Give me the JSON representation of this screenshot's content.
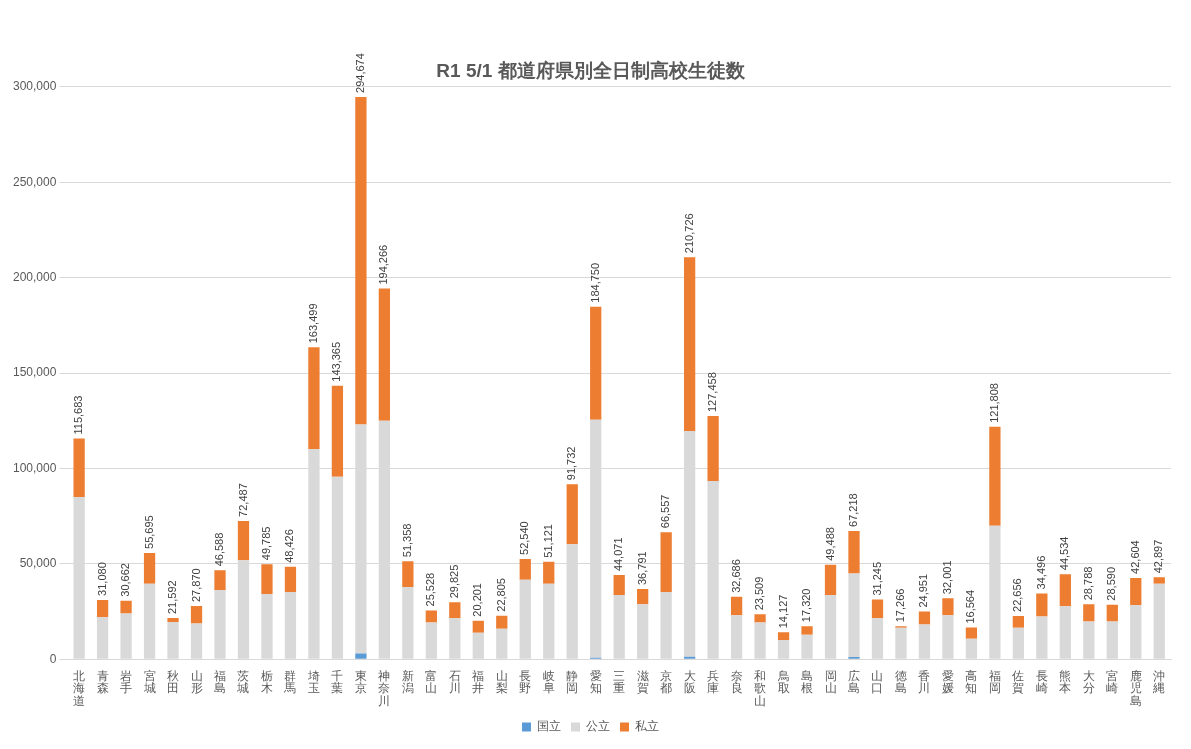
{
  "chart_data": {
    "type": "bar",
    "title": "R1 5/1 都道府県別全日制高校生徒数",
    "stacked": true,
    "grid": true,
    "legend": "bottom",
    "categories": [
      "北海道",
      "青森",
      "岩手",
      "宮城",
      "秋田",
      "山形",
      "福島",
      "茨城",
      "栃木",
      "群馬",
      "埼玉",
      "千葉",
      "東京",
      "神奈川",
      "新潟",
      "富山",
      "石川",
      "福井",
      "山梨",
      "長野",
      "岐阜",
      "静岡",
      "愛知",
      "三重",
      "滋賀",
      "京都",
      "大阪",
      "兵庫",
      "奈良",
      "和歌山",
      "鳥取",
      "島根",
      "岡山",
      "広島",
      "山口",
      "徳島",
      "香川",
      "愛媛",
      "高知",
      "福岡",
      "佐賀",
      "長崎",
      "熊本",
      "大分",
      "宮崎",
      "鹿児島",
      "沖縄"
    ],
    "series": [
      {
        "name": "国立",
        "color": "#5b9bd5",
        "values": [
          0,
          0,
          0,
          0,
          0,
          0,
          0,
          0,
          0,
          0,
          0,
          0,
          3000,
          0,
          0,
          0,
          0,
          0,
          0,
          0,
          0,
          0,
          700,
          0,
          0,
          0,
          1300,
          0,
          0,
          0,
          0,
          0,
          0,
          1100,
          0,
          0,
          0,
          0,
          0,
          0,
          0,
          0,
          0,
          0,
          0,
          0,
          0
        ]
      },
      {
        "name": "公立",
        "color": "#d9d9d9",
        "values": [
          85000,
          22000,
          24000,
          39500,
          19500,
          18700,
          36300,
          51800,
          34200,
          35200,
          110000,
          95600,
          120000,
          125000,
          37900,
          19200,
          21400,
          13900,
          16000,
          41600,
          39500,
          60300,
          124800,
          33600,
          28800,
          35200,
          118300,
          93400,
          23000,
          19200,
          10100,
          12800,
          33600,
          43800,
          21400,
          16500,
          18200,
          23000,
          10700,
          70000,
          16500,
          22400,
          27800,
          19800,
          19800,
          28300,
          39500
        ]
      },
      {
        "name": "私立",
        "color": "#ed7d31",
        "values": [
          30683,
          9080,
          6662,
          16195,
          2092,
          9170,
          10288,
          20687,
          15585,
          13226,
          53499,
          47765,
          171674,
          69266,
          13458,
          6328,
          8425,
          6301,
          6805,
          10940,
          11621,
          31432,
          59250,
          10471,
          7991,
          31357,
          91126,
          34058,
          9686,
          4309,
          4027,
          4520,
          15888,
          22318,
          9845,
          766,
          6751,
          9001,
          5864,
          51808,
          6156,
          12096,
          16734,
          8988,
          8790,
          14304,
          3397
        ]
      }
    ],
    "totals": [
      115683,
      31080,
      30662,
      55695,
      21592,
      27870,
      46588,
      72487,
      49785,
      48426,
      163499,
      143365,
      294674,
      194266,
      51358,
      25528,
      29825,
      20201,
      22805,
      52540,
      51121,
      91732,
      184750,
      44071,
      36791,
      66557,
      210726,
      127458,
      32686,
      23509,
      14127,
      17320,
      49488,
      67218,
      31245,
      17266,
      24951,
      32001,
      16564,
      121808,
      22656,
      34496,
      44534,
      28788,
      28590,
      42604,
      42897
    ],
    "total_labels": [
      "115,683",
      "31,080",
      "30,662",
      "55,695",
      "21,592",
      "27,870",
      "46,588",
      "72,487",
      "49,785",
      "48,426",
      "163,499",
      "143,365",
      "294,674",
      "194,266",
      "51,358",
      "25,528",
      "29,825",
      "20,201",
      "22,805",
      "52,540",
      "51,121",
      "91,732",
      "184,750",
      "44,071",
      "36,791",
      "66,557",
      "210,726",
      "127,458",
      "32,686",
      "23,509",
      "14,127",
      "17,320",
      "49,488",
      "67,218",
      "31,245",
      "17,266",
      "24,951",
      "32,001",
      "16,564",
      "121,808",
      "22,656",
      "34,496",
      "44,534",
      "28,788",
      "28,590",
      "42,604",
      "42,897"
    ],
    "ylim": [
      0,
      300000
    ],
    "yticks": [
      {
        "value": 0,
        "label": "0"
      },
      {
        "value": 50000,
        "label": "50,000"
      },
      {
        "value": 100000,
        "label": "100,000"
      },
      {
        "value": 150000,
        "label": "150,000"
      },
      {
        "value": 200000,
        "label": "200,000"
      },
      {
        "value": 250000,
        "label": "250,000"
      },
      {
        "value": 300000,
        "label": "300,000"
      }
    ]
  }
}
